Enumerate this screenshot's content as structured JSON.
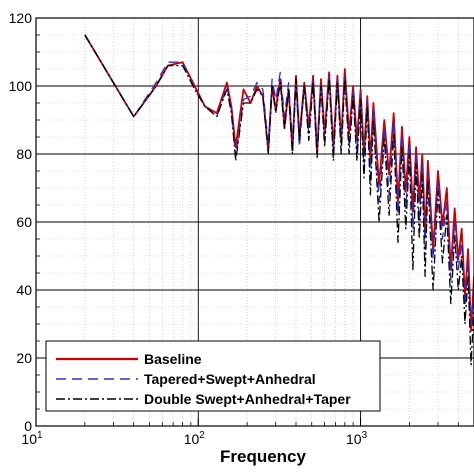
{
  "chart_data": {
    "type": "line",
    "title": "",
    "xlabel": "Frequency",
    "ylabel": "",
    "xscale": "log",
    "xlim": [
      10,
      5000
    ],
    "ylim": [
      0,
      120
    ],
    "grid": true,
    "legend_position": "bottom-left",
    "x_tick_labels": [
      {
        "base": "10",
        "exp": "1",
        "value": 10
      },
      {
        "base": "10",
        "exp": "2",
        "value": 100
      },
      {
        "base": "10",
        "exp": "3",
        "value": 1000
      }
    ],
    "y_tick_labels": [
      "0",
      "20",
      "40",
      "60",
      "80",
      "100",
      "120"
    ],
    "series": [
      {
        "name": "Baseline",
        "color": "#cc0000",
        "dash": "solid",
        "x": [
          20,
          40,
          55,
          65,
          80,
          95,
          110,
          130,
          150,
          160,
          170,
          190,
          210,
          230,
          250,
          270,
          285,
          300,
          320,
          340,
          360,
          380,
          400,
          420,
          450,
          480,
          510,
          540,
          570,
          600,
          640,
          680,
          720,
          760,
          800,
          850,
          900,
          950,
          1000,
          1050,
          1100,
          1150,
          1200,
          1300,
          1400,
          1500,
          1600,
          1700,
          1800,
          1900,
          2000,
          2100,
          2200,
          2300,
          2400,
          2500,
          2600,
          2800,
          3000,
          3200,
          3400,
          3600,
          3800,
          4000,
          4200,
          4400,
          4600,
          4800,
          5000
        ],
        "y": [
          115,
          91,
          100,
          106,
          107,
          100,
          94,
          92,
          101,
          94,
          82,
          99,
          95,
          100,
          97,
          81,
          100,
          93,
          102,
          88,
          99,
          81,
          103,
          85,
          101,
          88,
          103,
          80,
          102,
          86,
          104,
          82,
          103,
          84,
          105,
          86,
          100,
          84,
          99,
          80,
          97,
          78,
          95,
          71,
          90,
          74,
          92,
          66,
          88,
          69,
          85,
          63,
          82,
          66,
          80,
          56,
          78,
          52,
          75,
          59,
          70,
          46,
          64,
          49,
          58,
          38,
          52,
          28,
          44
        ]
      },
      {
        "name": "Tapered+Swept+Anhedral",
        "color": "#2b2bd6",
        "dash": "10,6",
        "x": [
          20,
          40,
          55,
          65,
          80,
          95,
          110,
          130,
          150,
          160,
          170,
          190,
          210,
          230,
          250,
          270,
          285,
          300,
          320,
          340,
          360,
          380,
          400,
          420,
          450,
          480,
          510,
          540,
          570,
          600,
          640,
          680,
          720,
          760,
          800,
          850,
          900,
          950,
          1000,
          1050,
          1100,
          1150,
          1200,
          1300,
          1400,
          1500,
          1600,
          1700,
          1800,
          1900,
          2000,
          2100,
          2200,
          2300,
          2400,
          2500,
          2600,
          2800,
          3000,
          3200,
          3400,
          3600,
          3800,
          4000,
          4200,
          4400,
          4600,
          4800,
          5000
        ],
        "y": [
          115,
          91,
          101,
          107,
          107,
          99,
          94,
          91,
          100,
          93,
          79,
          96,
          97,
          101,
          99,
          83,
          102,
          96,
          104,
          91,
          101,
          84,
          101,
          82,
          100,
          86,
          102,
          83,
          101,
          84,
          103,
          80,
          102,
          83,
          103,
          82,
          99,
          80,
          98,
          76,
          96,
          73,
          93,
          66,
          88,
          68,
          90,
          62,
          86,
          64,
          83,
          58,
          80,
          60,
          78,
          52,
          75,
          49,
          72,
          55,
          66,
          43,
          60,
          46,
          54,
          35,
          48,
          30,
          40
        ]
      },
      {
        "name": "Double Swept+Anhedral+Taper",
        "color": "#000000",
        "dash": "9,3,2,3",
        "x": [
          20,
          40,
          55,
          65,
          80,
          95,
          110,
          130,
          150,
          160,
          170,
          190,
          210,
          230,
          250,
          270,
          285,
          300,
          320,
          340,
          360,
          380,
          400,
          420,
          450,
          480,
          510,
          540,
          570,
          600,
          640,
          680,
          720,
          760,
          800,
          850,
          900,
          950,
          1000,
          1050,
          1100,
          1150,
          1200,
          1300,
          1400,
          1500,
          1600,
          1700,
          1800,
          1900,
          2000,
          2100,
          2200,
          2300,
          2400,
          2500,
          2600,
          2800,
          3000,
          3200,
          3400,
          3600,
          3800,
          4000,
          4200,
          4400,
          4600,
          4800,
          5000
        ],
        "y": [
          115,
          91,
          100,
          106,
          106,
          99,
          94,
          91,
          99,
          92,
          78,
          95,
          95,
          99,
          97,
          80,
          100,
          92,
          101,
          87,
          99,
          80,
          102,
          84,
          100,
          84,
          101,
          79,
          100,
          82,
          102,
          78,
          101,
          80,
          102,
          80,
          97,
          78,
          96,
          73,
          94,
          68,
          90,
          60,
          85,
          62,
          86,
          54,
          82,
          58,
          80,
          46,
          77,
          55,
          74,
          44,
          72,
          40,
          69,
          48,
          62,
          36,
          56,
          40,
          50,
          30,
          44,
          18,
          36
        ]
      }
    ]
  }
}
